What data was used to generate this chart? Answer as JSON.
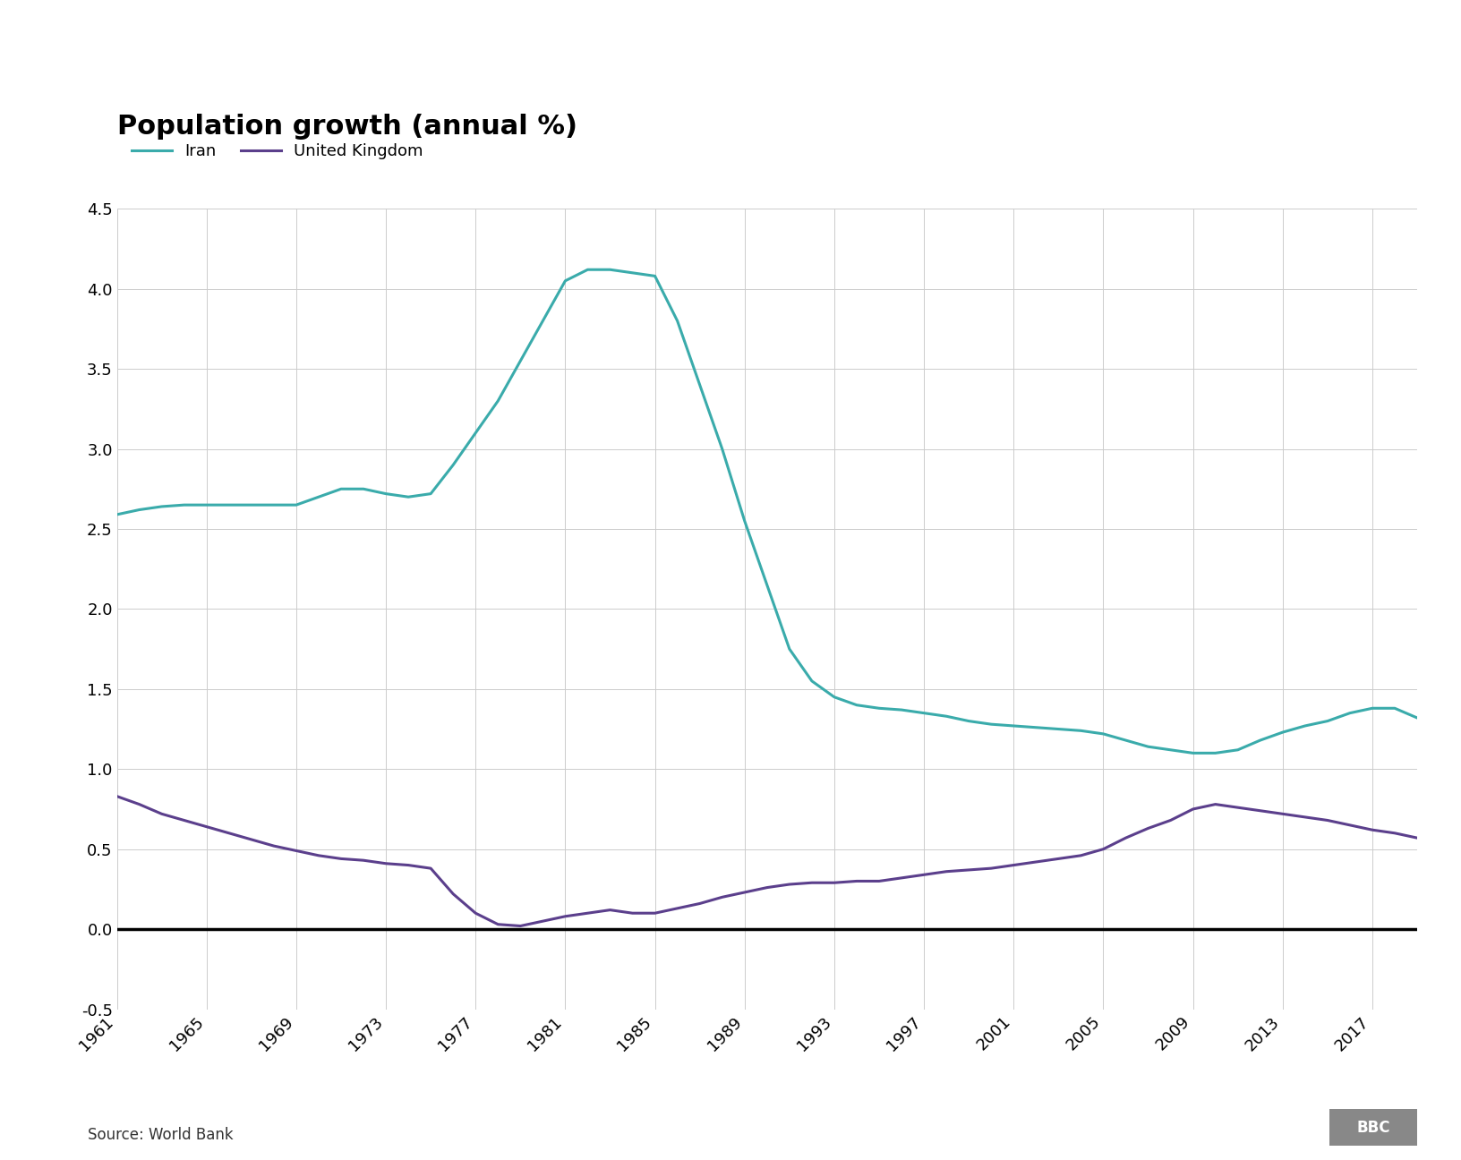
{
  "title": "Population growth (annual %)",
  "source": "Source: World Bank",
  "iran_color": "#3AABAB",
  "uk_color": "#5B3F8C",
  "zero_line_color": "#000000",
  "background_color": "#ffffff",
  "grid_color": "#cccccc",
  "years": [
    1961,
    1962,
    1963,
    1964,
    1965,
    1966,
    1967,
    1968,
    1969,
    1970,
    1971,
    1972,
    1973,
    1974,
    1975,
    1976,
    1977,
    1978,
    1979,
    1980,
    1981,
    1982,
    1983,
    1984,
    1985,
    1986,
    1987,
    1988,
    1989,
    1990,
    1991,
    1992,
    1993,
    1994,
    1995,
    1996,
    1997,
    1998,
    1999,
    2000,
    2001,
    2002,
    2003,
    2004,
    2005,
    2006,
    2007,
    2008,
    2009,
    2010,
    2011,
    2012,
    2013,
    2014,
    2015,
    2016,
    2017,
    2018,
    2019
  ],
  "iran": [
    2.59,
    2.62,
    2.64,
    2.65,
    2.65,
    2.65,
    2.65,
    2.65,
    2.65,
    2.7,
    2.75,
    2.75,
    2.72,
    2.7,
    2.72,
    2.9,
    3.1,
    3.3,
    3.55,
    3.8,
    4.05,
    4.12,
    4.12,
    4.1,
    4.08,
    3.8,
    3.4,
    3.0,
    2.55,
    2.15,
    1.75,
    1.55,
    1.45,
    1.4,
    1.38,
    1.37,
    1.35,
    1.33,
    1.3,
    1.28,
    1.27,
    1.26,
    1.25,
    1.24,
    1.22,
    1.18,
    1.14,
    1.12,
    1.1,
    1.1,
    1.12,
    1.18,
    1.23,
    1.27,
    1.3,
    1.35,
    1.38,
    1.38,
    1.32
  ],
  "uk": [
    0.83,
    0.78,
    0.72,
    0.68,
    0.64,
    0.6,
    0.56,
    0.52,
    0.49,
    0.46,
    0.44,
    0.43,
    0.41,
    0.4,
    0.38,
    0.22,
    0.1,
    0.03,
    0.02,
    0.05,
    0.08,
    0.1,
    0.12,
    0.1,
    0.1,
    0.13,
    0.16,
    0.2,
    0.23,
    0.26,
    0.28,
    0.29,
    0.29,
    0.3,
    0.3,
    0.32,
    0.34,
    0.36,
    0.37,
    0.38,
    0.4,
    0.42,
    0.44,
    0.46,
    0.5,
    0.57,
    0.63,
    0.68,
    0.75,
    0.78,
    0.76,
    0.74,
    0.72,
    0.7,
    0.68,
    0.65,
    0.62,
    0.6,
    0.57
  ],
  "ylim": [
    -0.5,
    4.5
  ],
  "yticks": [
    -0.5,
    0.0,
    0.5,
    1.0,
    1.5,
    2.0,
    2.5,
    3.0,
    3.5,
    4.0,
    4.5
  ],
  "xticks": [
    1961,
    1965,
    1969,
    1973,
    1977,
    1981,
    1985,
    1989,
    1993,
    1997,
    2001,
    2005,
    2009,
    2013,
    2017
  ],
  "xlim": [
    1961,
    2019
  ],
  "line_width": 2.2,
  "title_fontsize": 22,
  "tick_fontsize": 13,
  "source_fontsize": 12,
  "legend_fontsize": 13
}
